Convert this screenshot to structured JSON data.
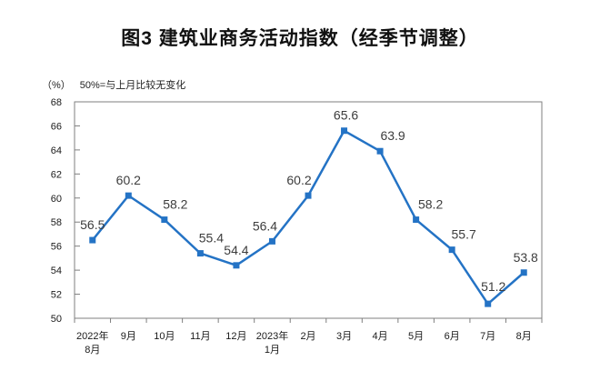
{
  "figure": {
    "title": "图3 建筑业商务活动指数（经季节调整）",
    "y_axis_unit": "（%）",
    "reference_note": "50%=与上月比较无变化"
  },
  "chart_data": {
    "type": "line",
    "title": "图3 建筑业商务活动指数（经季节调整）",
    "unit": "（%）",
    "note": "50%=与上月比较无变化",
    "categories": [
      [
        "2022年",
        "8月"
      ],
      [
        "9月"
      ],
      [
        "10月"
      ],
      [
        "11月"
      ],
      [
        "12月"
      ],
      [
        "2023年",
        "1月"
      ],
      [
        "2月"
      ],
      [
        "3月"
      ],
      [
        "4月"
      ],
      [
        "5月"
      ],
      [
        "6月"
      ],
      [
        "7月"
      ],
      [
        "8月"
      ]
    ],
    "values": [
      56.5,
      60.2,
      58.2,
      55.4,
      54.4,
      56.4,
      60.2,
      65.6,
      63.9,
      58.2,
      55.7,
      51.2,
      53.8
    ],
    "ylim": [
      50,
      68
    ],
    "ytick_step": 2,
    "grid": false,
    "legend": "none",
    "marker": "square",
    "line_color": "#2473C5",
    "data_label_color": "#3D3D3D",
    "axis_color": "#7F7F7F",
    "tick_label_color": "#1A1A1A"
  }
}
